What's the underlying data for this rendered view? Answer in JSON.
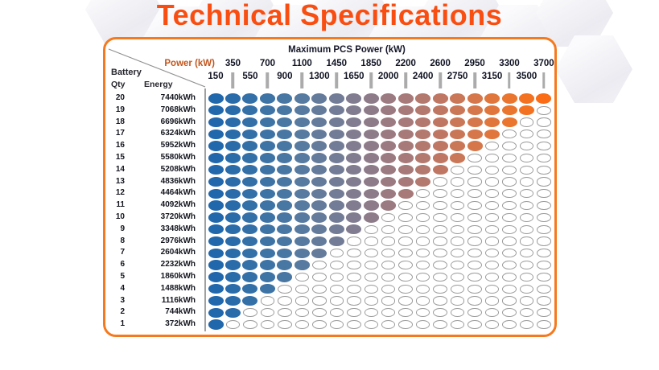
{
  "header": {
    "title": "Technical Specifications"
  },
  "chart": {
    "header_label": "Maximum PCS Power (kW)",
    "power_label": "Power (kW)",
    "battery_label": "Battery",
    "qty_label": "Qty",
    "energy_label": "Energy"
  },
  "chart_data": {
    "type": "heatmap",
    "title": "Maximum PCS Power (kW)",
    "x_axis_label": "Power (kW)",
    "y_axis_labels": [
      "Battery Qty",
      "Energy"
    ],
    "power_columns_kw": [
      150,
      350,
      550,
      700,
      900,
      1100,
      1300,
      1450,
      1650,
      1850,
      2000,
      2200,
      2400,
      2600,
      2750,
      2950,
      3150,
      3300,
      3500,
      3700
    ],
    "rows": [
      {
        "qty": 20,
        "energy": "7440kWh",
        "filled_columns": 20
      },
      {
        "qty": 19,
        "energy": "7068kWh",
        "filled_columns": 19
      },
      {
        "qty": 18,
        "energy": "6696kWh",
        "filled_columns": 18
      },
      {
        "qty": 17,
        "energy": "6324kWh",
        "filled_columns": 17
      },
      {
        "qty": 16,
        "energy": "5952kWh",
        "filled_columns": 16
      },
      {
        "qty": 15,
        "energy": "5580kWh",
        "filled_columns": 15
      },
      {
        "qty": 14,
        "energy": "5208kWh",
        "filled_columns": 14
      },
      {
        "qty": 13,
        "energy": "4836kWh",
        "filled_columns": 13
      },
      {
        "qty": 12,
        "energy": "4464kWh",
        "filled_columns": 12
      },
      {
        "qty": 11,
        "energy": "4092kWh",
        "filled_columns": 11
      },
      {
        "qty": 10,
        "energy": "3720kWh",
        "filled_columns": 10
      },
      {
        "qty": 9,
        "energy": "3348kWh",
        "filled_columns": 9
      },
      {
        "qty": 8,
        "energy": "2976kWh",
        "filled_columns": 8
      },
      {
        "qty": 7,
        "energy": "2604kWh",
        "filled_columns": 7
      },
      {
        "qty": 6,
        "energy": "2232kWh",
        "filled_columns": 6
      },
      {
        "qty": 5,
        "energy": "1860kWh",
        "filled_columns": 5
      },
      {
        "qty": 4,
        "energy": "1488kWh",
        "filled_columns": 4
      },
      {
        "qty": 3,
        "energy": "1116kWh",
        "filled_columns": 3
      },
      {
        "qty": 2,
        "energy": "744kWh",
        "filled_columns": 2
      },
      {
        "qty": 1,
        "energy": "372kWh",
        "filled_columns": 1
      }
    ],
    "column_colors": [
      "#2067AC",
      "#2A6BAA",
      "#3470A8",
      "#3E73A6",
      "#4977A4",
      "#567AA0",
      "#647B9B",
      "#737C96",
      "#817C90",
      "#8E7B89",
      "#9B7A81",
      "#A77978",
      "#B3786E",
      "#BF7763",
      "#CA7757",
      "#D5774A",
      "#E0763C",
      "#EA752E",
      "#F37222",
      "#FB6C16"
    ],
    "empty_dot": {
      "fill": "#FFFFFF",
      "border": "#9C9C9C"
    },
    "accent_colors": {
      "title": "#F94E12",
      "card_border": "#F5791E",
      "header_text": "#16182A",
      "power_label": "#C2561D",
      "axis_text": "#0F1222",
      "row_text": "#14161F"
    },
    "layout": {
      "grid": "20 columns x 20 rows",
      "legend_position": "none",
      "staggered_x_labels": true
    }
  }
}
